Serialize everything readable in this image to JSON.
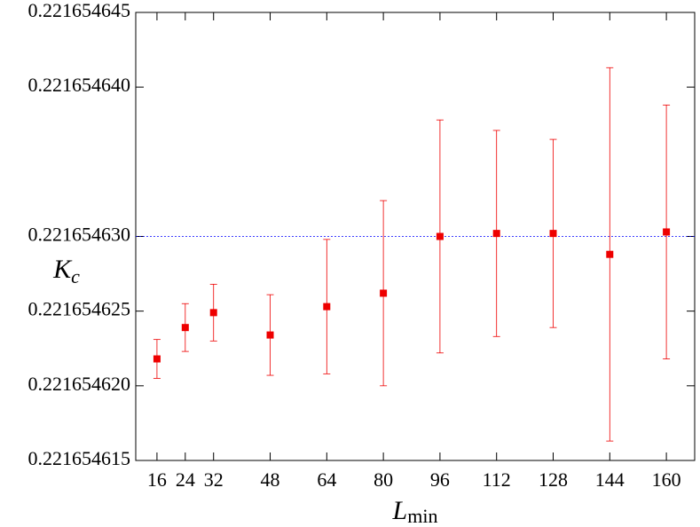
{
  "chart_data": {
    "type": "scatter",
    "ylabel": {
      "main": "K",
      "sub": "c"
    },
    "xlabel": {
      "main": "L",
      "sub": "min"
    },
    "xlim": [
      10,
      168
    ],
    "xticks": [
      16,
      24,
      32,
      48,
      64,
      80,
      96,
      112,
      128,
      144,
      160
    ],
    "ylim": [
      0.221654615,
      0.221654645
    ],
    "yticks": [
      0.221654615,
      {
        "value": 0.22165462,
        "label": "0.221654620"
      },
      0.221654625,
      {
        "value": 0.22165463,
        "label": "0.221654630"
      },
      {
        "value": 0.22165464,
        "label": "0.221654640"
      },
      0.221654645
    ],
    "reference_line": {
      "value": 0.22165463,
      "color": "#0000ff"
    },
    "series": [
      {
        "color": "#ee0000",
        "x": [
          16,
          24,
          32,
          48,
          64,
          80,
          96,
          112,
          128,
          144,
          160
        ],
        "values": [
          0.2216546218,
          0.2216546239,
          0.2216546249,
          0.2216546234,
          0.2216546253,
          0.2216546262,
          0.22165463,
          0.2216546302,
          0.2216546302,
          0.2216546288,
          0.2216546303
        ],
        "errors": [
          1.3e-09,
          1.6e-09,
          1.9e-09,
          2.7e-09,
          4.5e-09,
          6.2e-09,
          7.8e-09,
          6.9e-09,
          6.3e-09,
          1.25e-08,
          8.5e-09
        ]
      }
    ]
  }
}
